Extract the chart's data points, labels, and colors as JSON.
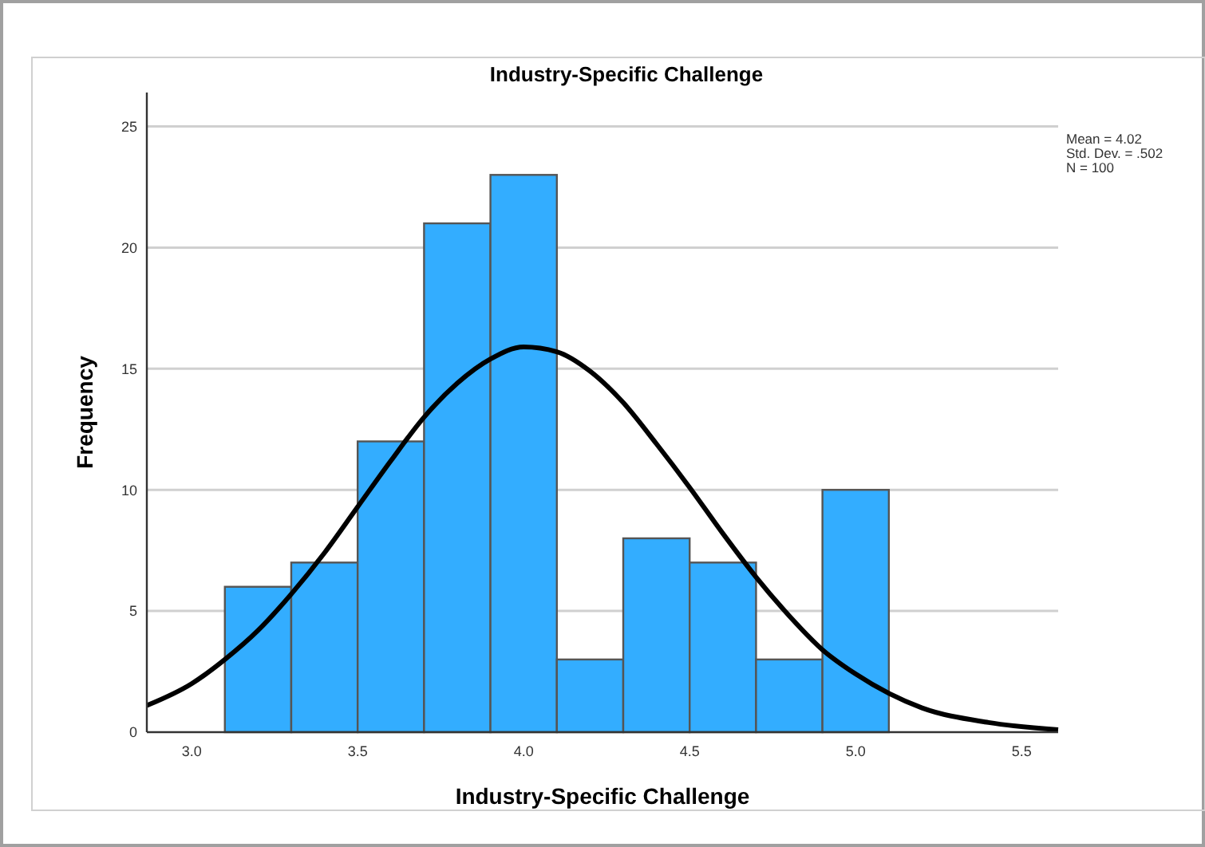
{
  "chart_data": {
    "type": "histogram",
    "title": "Industry-Specific Challenge",
    "xlabel": "Industry-Specific Challenge",
    "ylabel": "Frequency",
    "bins": [
      3.1,
      3.3,
      3.5,
      3.7,
      3.9,
      4.1,
      4.3,
      4.5,
      4.7,
      4.9,
      5.1
    ],
    "values": [
      6,
      7,
      12,
      21,
      23,
      3,
      8,
      7,
      3,
      10
    ],
    "color": "#33adff",
    "series": [
      {
        "type": "line",
        "color": "#000000",
        "x": [
          2.865,
          3.0,
          3.1,
          3.2,
          3.3,
          3.4,
          3.5,
          3.6,
          3.7,
          3.8,
          3.9,
          4.0,
          4.1,
          4.2,
          4.3,
          4.4,
          4.5,
          4.6,
          4.7,
          4.8,
          4.9,
          5.0,
          5.2,
          5.4,
          5.61
        ],
        "values": [
          1.1,
          2.0,
          3.0,
          4.2,
          5.7,
          7.4,
          9.3,
          11.2,
          13.0,
          14.4,
          15.4,
          15.9,
          15.7,
          14.9,
          13.6,
          11.9,
          10.1,
          8.2,
          6.4,
          4.8,
          3.4,
          2.4,
          1.0,
          0.4,
          0.1
        ]
      }
    ],
    "xlim": [
      2.865,
      5.61
    ],
    "xticks": [
      {
        "value": 3,
        "label": "3.0"
      },
      3.5,
      {
        "value": 4,
        "label": "4.0"
      },
      4.5,
      {
        "value": 5,
        "label": "5.0"
      },
      5.5
    ],
    "ylim": [
      0,
      26.4
    ],
    "yticks": [
      0,
      5,
      10,
      15,
      20,
      25
    ],
    "grid": "y",
    "annotations": [
      "Mean = 4.02",
      "Std. Dev. = .502",
      "N = 100"
    ]
  }
}
